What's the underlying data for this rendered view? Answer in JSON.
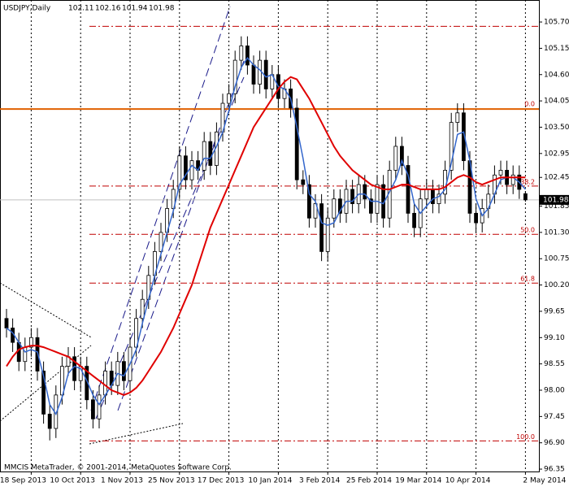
{
  "chart_data": {
    "type": "candlestick",
    "symbol": "USDJPY,Daily",
    "footer": "MMCIS MetaTrader, © 2001-2014, MetaQuotes Software Corp.",
    "categories": [
      null,
      null,
      null,
      null,
      "18 Sep 2013",
      null,
      null,
      null,
      null,
      null,
      null,
      null,
      "10 Oct 2013",
      null,
      null,
      null,
      null,
      null,
      null,
      null,
      "1 Nov 2013",
      null,
      null,
      null,
      null,
      null,
      null,
      null,
      "25 Nov 2013",
      null,
      null,
      null,
      null,
      null,
      null,
      null,
      "17 Dec 2013",
      null,
      null,
      null,
      null,
      null,
      null,
      null,
      "10 Jan 2014",
      null,
      null,
      null,
      null,
      null,
      null,
      null,
      "3 Feb 2014",
      null,
      null,
      null,
      null,
      null,
      null,
      null,
      "25 Feb 2014",
      null,
      null,
      null,
      null,
      null,
      null,
      null,
      "19 Mar 2014",
      null,
      null,
      null,
      null,
      null,
      null,
      null,
      "10 Apr 2014",
      null,
      null,
      null,
      null,
      null,
      null,
      null,
      "2 May 2014"
    ],
    "candles": [
      [
        99.5,
        99.7,
        99.1,
        99.3
      ],
      [
        99.3,
        99.5,
        98.8,
        99.0
      ],
      [
        99.0,
        99.2,
        98.4,
        98.6
      ],
      [
        98.6,
        99.1,
        98.4,
        98.9
      ],
      [
        98.9,
        99.3,
        98.7,
        99.1
      ],
      [
        99.1,
        99.3,
        98.2,
        98.4
      ],
      [
        98.4,
        98.6,
        97.3,
        97.5
      ],
      [
        97.5,
        97.7,
        96.95,
        97.2
      ],
      [
        97.2,
        98.1,
        97.0,
        97.9
      ],
      [
        97.9,
        98.7,
        97.7,
        98.5
      ],
      [
        98.5,
        98.9,
        98.3,
        98.7
      ],
      [
        98.7,
        98.9,
        98.0,
        98.2
      ],
      [
        98.2,
        98.7,
        98.0,
        98.5
      ],
      [
        98.5,
        98.7,
        97.6,
        97.8
      ],
      [
        97.8,
        98.0,
        97.2,
        97.4
      ],
      [
        97.4,
        98.1,
        97.2,
        97.9
      ],
      [
        97.9,
        98.6,
        97.7,
        98.4
      ],
      [
        98.4,
        98.6,
        97.9,
        98.1
      ],
      [
        98.1,
        98.8,
        97.9,
        98.6
      ],
      [
        98.6,
        98.8,
        98.0,
        98.2
      ],
      [
        98.2,
        99.1,
        98.0,
        98.9
      ],
      [
        98.9,
        99.7,
        98.7,
        99.5
      ],
      [
        99.5,
        100.1,
        99.3,
        99.9
      ],
      [
        99.9,
        100.6,
        99.7,
        100.4
      ],
      [
        100.4,
        101.1,
        100.2,
        100.9
      ],
      [
        100.9,
        101.5,
        100.7,
        101.3
      ],
      [
        101.3,
        102.0,
        101.1,
        101.8
      ],
      [
        101.8,
        102.4,
        101.6,
        102.2
      ],
      [
        102.2,
        103.1,
        102.0,
        102.9
      ],
      [
        102.9,
        103.1,
        102.2,
        102.4
      ],
      [
        102.4,
        103.0,
        102.2,
        102.8
      ],
      [
        102.8,
        103.0,
        102.4,
        102.6
      ],
      [
        102.6,
        103.4,
        102.4,
        103.2
      ],
      [
        103.2,
        103.4,
        102.5,
        102.7
      ],
      [
        102.7,
        103.6,
        102.5,
        103.4
      ],
      [
        103.4,
        104.2,
        103.2,
        104.0
      ],
      [
        104.0,
        104.4,
        103.8,
        104.2
      ],
      [
        104.2,
        105.1,
        104.0,
        104.9
      ],
      [
        104.9,
        105.4,
        104.7,
        105.2
      ],
      [
        105.2,
        105.4,
        104.6,
        104.8
      ],
      [
        104.8,
        105.0,
        104.2,
        104.4
      ],
      [
        104.4,
        105.1,
        104.2,
        104.9
      ],
      [
        104.9,
        105.1,
        104.1,
        104.3
      ],
      [
        104.3,
        104.8,
        104.1,
        104.6
      ],
      [
        104.6,
        104.8,
        103.9,
        104.1
      ],
      [
        104.1,
        104.5,
        103.9,
        104.3
      ],
      [
        104.3,
        104.5,
        103.7,
        103.9
      ],
      [
        103.9,
        104.1,
        102.2,
        102.4
      ],
      [
        102.4,
        102.6,
        102.1,
        102.3
      ],
      [
        102.3,
        102.5,
        101.4,
        101.6
      ],
      [
        101.6,
        102.1,
        101.4,
        101.9
      ],
      [
        101.9,
        102.1,
        100.7,
        100.9
      ],
      [
        100.9,
        101.8,
        100.7,
        101.6
      ],
      [
        101.6,
        102.2,
        101.4,
        102.0
      ],
      [
        102.0,
        102.2,
        101.5,
        101.7
      ],
      [
        101.7,
        102.4,
        101.5,
        102.2
      ],
      [
        102.2,
        102.4,
        101.7,
        101.9
      ],
      [
        101.9,
        102.5,
        101.7,
        102.3
      ],
      [
        102.3,
        102.5,
        101.8,
        102.0
      ],
      [
        102.0,
        102.2,
        101.5,
        101.7
      ],
      [
        101.7,
        102.5,
        101.5,
        102.3
      ],
      [
        102.3,
        102.5,
        101.4,
        101.6
      ],
      [
        101.6,
        102.8,
        101.4,
        102.6
      ],
      [
        102.6,
        103.3,
        102.4,
        103.1
      ],
      [
        103.1,
        103.3,
        102.5,
        102.7
      ],
      [
        102.7,
        102.9,
        101.5,
        101.7
      ],
      [
        101.7,
        101.9,
        101.2,
        101.4
      ],
      [
        101.4,
        102.2,
        101.2,
        102.0
      ],
      [
        102.0,
        102.4,
        101.8,
        102.2
      ],
      [
        102.2,
        102.4,
        101.7,
        101.9
      ],
      [
        101.9,
        102.3,
        101.7,
        102.1
      ],
      [
        102.1,
        102.8,
        101.9,
        102.6
      ],
      [
        102.6,
        103.8,
        102.4,
        103.6
      ],
      [
        103.6,
        104.0,
        103.4,
        103.8
      ],
      [
        103.8,
        104.0,
        102.6,
        102.8
      ],
      [
        102.8,
        103.0,
        101.5,
        101.7
      ],
      [
        101.7,
        101.9,
        101.3,
        101.5
      ],
      [
        101.5,
        102.0,
        101.3,
        101.8
      ],
      [
        101.8,
        102.3,
        101.6,
        102.1
      ],
      [
        102.1,
        102.7,
        101.9,
        102.5
      ],
      [
        102.5,
        102.8,
        102.3,
        102.6
      ],
      [
        102.6,
        102.8,
        102.1,
        102.3
      ],
      [
        102.3,
        102.7,
        102.1,
        102.5
      ],
      [
        102.5,
        102.7,
        102.0,
        102.2
      ],
      [
        102.11,
        102.16,
        101.94,
        101.98
      ]
    ],
    "series": [
      {
        "color": "#3366cc",
        "values": [
          99.3,
          99.2,
          99.0,
          98.8,
          98.85,
          98.8,
          98.3,
          97.7,
          97.5,
          97.85,
          98.35,
          98.5,
          98.45,
          98.2,
          97.9,
          97.7,
          97.9,
          98.1,
          98.35,
          98.3,
          98.55,
          98.85,
          99.4,
          99.9,
          100.4,
          100.85,
          101.3,
          101.75,
          102.3,
          102.5,
          102.7,
          102.6,
          102.85,
          102.85,
          103.1,
          103.4,
          103.85,
          104.35,
          104.75,
          104.95,
          104.8,
          104.7,
          104.55,
          104.6,
          104.35,
          104.3,
          104.1,
          103.5,
          102.85,
          102.1,
          101.95,
          101.5,
          101.45,
          101.5,
          101.75,
          101.95,
          101.95,
          102.1,
          102.1,
          101.95,
          101.95,
          101.9,
          102.15,
          102.4,
          102.8,
          102.5,
          101.9,
          101.7,
          101.85,
          102.0,
          102.05,
          102.2,
          102.75,
          103.35,
          103.4,
          102.8,
          102.0,
          101.65,
          101.8,
          102.1,
          102.4,
          102.45,
          102.45,
          102.35,
          102.2
        ]
      },
      {
        "color": "#e00000",
        "values": [
          98.5,
          98.7,
          98.85,
          98.9,
          98.93,
          98.93,
          98.9,
          98.85,
          98.8,
          98.75,
          98.7,
          98.6,
          98.5,
          98.4,
          98.3,
          98.2,
          98.1,
          98.0,
          97.95,
          97.9,
          97.95,
          98.05,
          98.2,
          98.4,
          98.6,
          98.8,
          99.05,
          99.3,
          99.6,
          99.9,
          100.2,
          100.6,
          101.0,
          101.4,
          101.7,
          102.0,
          102.3,
          102.6,
          102.9,
          103.2,
          103.5,
          103.7,
          103.9,
          104.1,
          104.3,
          104.45,
          104.55,
          104.5,
          104.3,
          104.1,
          103.85,
          103.6,
          103.35,
          103.1,
          102.9,
          102.75,
          102.6,
          102.5,
          102.4,
          102.3,
          102.25,
          102.2,
          102.2,
          102.25,
          102.3,
          102.3,
          102.25,
          102.2,
          102.2,
          102.2,
          102.2,
          102.25,
          102.35,
          102.45,
          102.5,
          102.45,
          102.35,
          102.3,
          102.35,
          102.4,
          102.45,
          102.45,
          102.45,
          102.45,
          102.45
        ]
      }
    ],
    "levels": [
      {
        "price": 105.61
      },
      {
        "price": 102.27,
        "label": "38.2"
      },
      {
        "price": 101.26,
        "label": "50.0"
      },
      {
        "price": 100.24,
        "label": "61.8"
      },
      {
        "price": 96.94,
        "label": "100.0"
      }
    ],
    "level_line": {
      "price": 103.88,
      "label": "0.0",
      "color": "#e06000"
    },
    "current_price": 101.98,
    "ylim": [
      96.3,
      106.16
    ],
    "yticks": [
      {
        "value": 105.7,
        "label": "105.70"
      },
      {
        "value": 105.15,
        "label": "105.15"
      },
      {
        "value": 104.6,
        "label": "104.60"
      },
      {
        "value": 104.05,
        "label": "104.05"
      },
      {
        "value": 103.5,
        "label": "103.50"
      },
      {
        "value": 102.95,
        "label": "102.95"
      },
      {
        "value": 102.45,
        "label": "102.45"
      },
      {
        "value": 101.85,
        "label": "101.85"
      },
      {
        "value": 101.3,
        "label": "101.30"
      },
      {
        "value": 100.75,
        "label": "100.75"
      },
      {
        "value": 100.2,
        "label": "100.20"
      },
      {
        "value": 99.65,
        "label": "99.65"
      },
      {
        "value": 99.1,
        "label": "99.10"
      },
      {
        "value": 98.55,
        "label": "98.55"
      },
      {
        "value": 98.0,
        "label": "98.00"
      },
      {
        "value": 97.45,
        "label": "97.45"
      },
      {
        "value": 96.9,
        "label": "96.90"
      },
      {
        "value": 96.35,
        "label": "96.35"
      }
    ]
  }
}
